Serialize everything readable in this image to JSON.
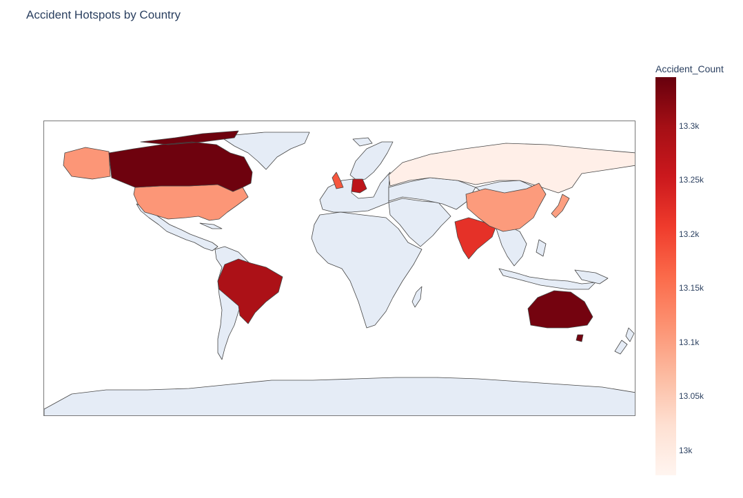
{
  "title": "Accident Hotspots by Country",
  "colorbar": {
    "title": "Accident_Count",
    "ticks": [
      "13.3k",
      "13.25k",
      "13.2k",
      "13.15k",
      "13.1k",
      "13.05k",
      "13k"
    ],
    "colors": {
      "min": "#fff5f0",
      "max": "#67000d"
    }
  },
  "chart_data": {
    "type": "choropleth",
    "value_name": "Accident_Count",
    "range": [
      12977,
      13345
    ],
    "no_data_color": "#e5ecf6",
    "countries": [
      {
        "name": "Canada",
        "value": 13340
      },
      {
        "name": "Australia",
        "value": 13335
      },
      {
        "name": "Brazil",
        "value": 13290
      },
      {
        "name": "Germany",
        "value": 13270
      },
      {
        "name": "India",
        "value": 13220
      },
      {
        "name": "United Kingdom",
        "value": 13180
      },
      {
        "name": "United States",
        "value": 13110
      },
      {
        "name": "China",
        "value": 13105
      },
      {
        "name": "Japan",
        "value": 13100
      },
      {
        "name": "Russia",
        "value": 12990
      }
    ]
  }
}
